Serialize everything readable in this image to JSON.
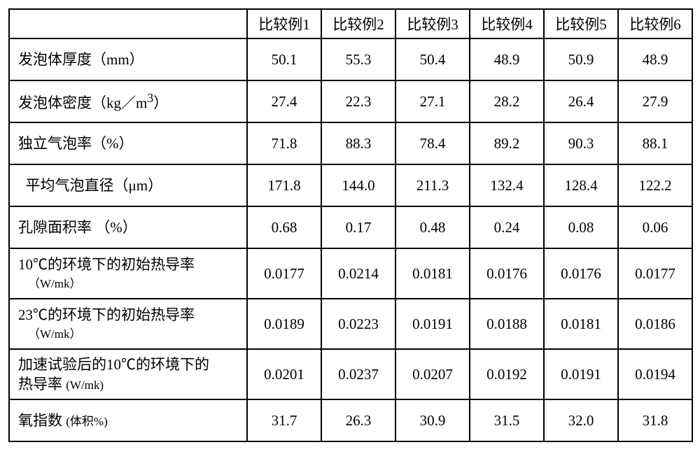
{
  "columns": [
    "比较例1",
    "比较例2",
    "比较例3",
    "比较例4",
    "比较例5",
    "比较例6"
  ],
  "rows": [
    {
      "label_html": "发泡体厚度（mm）",
      "h": "h-short",
      "vals": [
        "50.1",
        "55.3",
        "50.4",
        "48.9",
        "50.9",
        "48.9"
      ]
    },
    {
      "label_html": "发泡体密度（kg／m<sup>3</sup>）",
      "h": "h-short",
      "vals": [
        "27.4",
        "22.3",
        "27.1",
        "28.2",
        "26.4",
        "27.9"
      ]
    },
    {
      "label_html": "独立气泡率（%）",
      "h": "h-short",
      "vals": [
        "71.8",
        "88.3",
        "78.4",
        "89.2",
        "90.3",
        "88.1"
      ]
    },
    {
      "label_html": "&nbsp;&nbsp;平均气泡直径（μm）",
      "h": "h-short",
      "vals": [
        "171.8",
        "144.0",
        "211.3",
        "132.4",
        "128.4",
        "122.2"
      ]
    },
    {
      "label_html": "孔隙面积率 （%）",
      "h": "h-short",
      "vals": [
        "0.68",
        "0.17",
        "0.48",
        "0.24",
        "0.08",
        "0.06"
      ]
    },
    {
      "label_html": "10℃的环境下的初始热导率<span class=\"sub-line\">（W/mk）</span>",
      "h": "h-tall",
      "vals": [
        "0.0177",
        "0.0214",
        "0.0181",
        "0.0176",
        "0.0176",
        "0.0177"
      ]
    },
    {
      "label_html": "23℃的环境下的初始热导率<span class=\"sub-line\">（W/mk）</span>",
      "h": "h-tall",
      "vals": [
        "0.0189",
        "0.0223",
        "0.0191",
        "0.0188",
        "0.0181",
        "0.0186"
      ]
    },
    {
      "label_html": "加速试验后的10℃的环境下的<br>热导率 <span class=\"sub\">(W/mk)</span>",
      "h": "h-tall",
      "vals": [
        "0.0201",
        "0.0237",
        "0.0207",
        "0.0192",
        "0.0191",
        "0.0194"
      ]
    },
    {
      "label_html": "氧指数 <span class=\"sub\">(体积%)</span>",
      "h": "h-short",
      "vals": [
        "31.7",
        "26.3",
        "30.9",
        "31.5",
        "32.0",
        "31.8"
      ]
    }
  ],
  "layout": {
    "label_col_width": 340,
    "data_col_width": 106
  }
}
